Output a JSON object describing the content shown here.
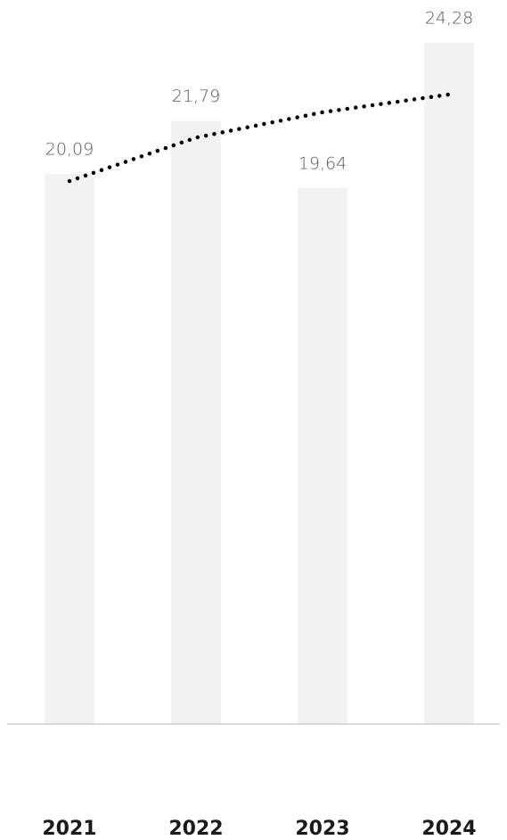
{
  "chart_data": {
    "type": "bar",
    "categories": [
      "2021",
      "2022",
      "2023",
      "2024"
    ],
    "values": [
      20.09,
      21.79,
      19.64,
      24.28
    ],
    "value_labels": [
      "20,09",
      "21,79",
      "19,64",
      "24,28"
    ],
    "color": "#f2f2f2",
    "trendline": {
      "values": [
        19.86,
        21.25,
        22.06,
        22.63
      ],
      "color": "#000000"
    },
    "ylim": [
      2.5,
      25
    ]
  }
}
